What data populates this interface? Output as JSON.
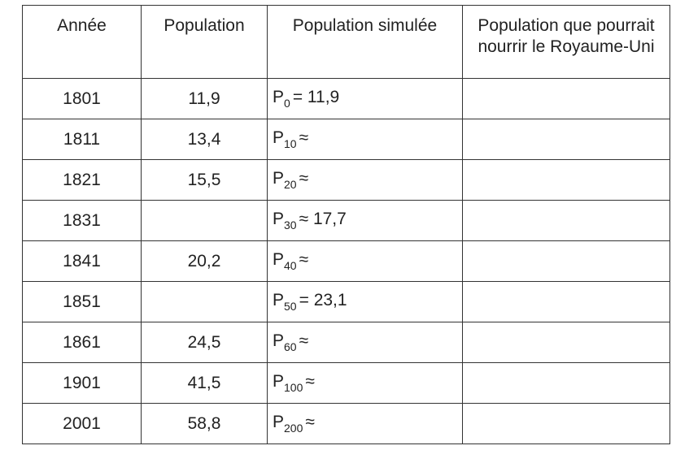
{
  "table": {
    "headers": [
      "Année",
      "Population",
      "Population simulée",
      "Population que pourrait nourrir le Royaume-Uni"
    ],
    "rows": [
      {
        "year": "1801",
        "population": "11,9",
        "sim_base": "P",
        "sim_sub": "0",
        "sim_rest": "= 11,9",
        "capacity": ""
      },
      {
        "year": "1811",
        "population": "13,4",
        "sim_base": "P",
        "sim_sub": "10",
        "sim_rest": "≈",
        "capacity": ""
      },
      {
        "year": "1821",
        "population": "15,5",
        "sim_base": "P",
        "sim_sub": "20",
        "sim_rest": "≈",
        "capacity": ""
      },
      {
        "year": "1831",
        "population": "",
        "sim_base": "P",
        "sim_sub": "30",
        "sim_rest": "≈ 17,7",
        "capacity": ""
      },
      {
        "year": "1841",
        "population": "20,2",
        "sim_base": "P",
        "sim_sub": "40",
        "sim_rest": "≈",
        "capacity": ""
      },
      {
        "year": "1851",
        "population": "",
        "sim_base": "P",
        "sim_sub": "50",
        "sim_rest": "= 23,1",
        "capacity": ""
      },
      {
        "year": "1861",
        "population": "24,5",
        "sim_base": "P",
        "sim_sub": "60",
        "sim_rest": "≈",
        "capacity": ""
      },
      {
        "year": "1901",
        "population": "41,5",
        "sim_base": "P",
        "sim_sub": "100",
        "sim_rest": "≈",
        "capacity": ""
      },
      {
        "year": "2001",
        "population": "58,8",
        "sim_base": "P",
        "sim_sub": "200",
        "sim_rest": "≈",
        "capacity": ""
      }
    ]
  }
}
